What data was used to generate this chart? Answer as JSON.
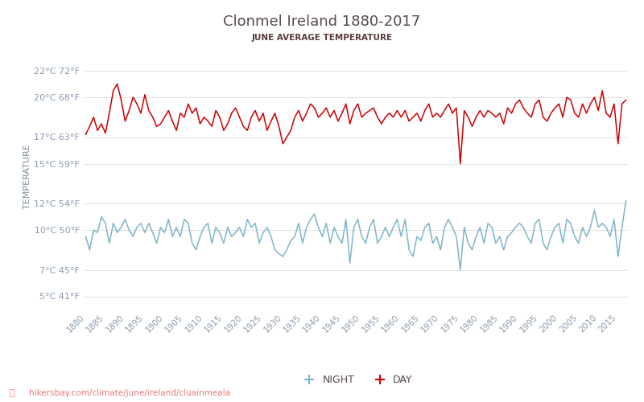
{
  "title": "Clonmel Ireland 1880-2017",
  "subtitle": "JUNE AVERAGE TEMPERATURE",
  "ylabel": "TEMPERATURE",
  "url": "hikersbay.com/climate/june/ireland/cluainmeala",
  "legend_night": "NIGHT",
  "legend_day": "DAY",
  "years": [
    1880,
    1881,
    1882,
    1883,
    1884,
    1885,
    1886,
    1887,
    1888,
    1889,
    1890,
    1891,
    1892,
    1893,
    1894,
    1895,
    1896,
    1897,
    1898,
    1899,
    1900,
    1901,
    1902,
    1903,
    1904,
    1905,
    1906,
    1907,
    1908,
    1909,
    1910,
    1911,
    1912,
    1913,
    1914,
    1915,
    1916,
    1917,
    1918,
    1919,
    1920,
    1921,
    1922,
    1923,
    1924,
    1925,
    1926,
    1927,
    1928,
    1929,
    1930,
    1931,
    1932,
    1933,
    1934,
    1935,
    1936,
    1937,
    1938,
    1939,
    1940,
    1941,
    1942,
    1943,
    1944,
    1945,
    1946,
    1947,
    1948,
    1949,
    1950,
    1951,
    1952,
    1953,
    1954,
    1955,
    1956,
    1957,
    1958,
    1959,
    1960,
    1961,
    1962,
    1963,
    1964,
    1965,
    1966,
    1967,
    1968,
    1969,
    1970,
    1971,
    1972,
    1973,
    1974,
    1975,
    1976,
    1977,
    1978,
    1979,
    1980,
    1981,
    1982,
    1983,
    1984,
    1985,
    1986,
    1987,
    1988,
    1989,
    1990,
    1991,
    1992,
    1993,
    1994,
    1995,
    1996,
    1997,
    1998,
    1999,
    2000,
    2001,
    2002,
    2003,
    2004,
    2005,
    2006,
    2007,
    2008,
    2009,
    2010,
    2011,
    2012,
    2013,
    2014,
    2015,
    2016,
    2017
  ],
  "day_temps": [
    17.2,
    17.8,
    18.5,
    17.5,
    18.0,
    17.3,
    18.8,
    20.5,
    21.0,
    19.8,
    18.2,
    19.0,
    20.0,
    19.5,
    18.8,
    20.2,
    19.0,
    18.5,
    17.8,
    18.0,
    18.5,
    19.0,
    18.2,
    17.5,
    18.8,
    18.5,
    19.5,
    18.8,
    19.2,
    18.0,
    18.5,
    18.2,
    17.8,
    19.0,
    18.5,
    17.5,
    18.0,
    18.8,
    19.2,
    18.5,
    17.8,
    17.5,
    18.5,
    19.0,
    18.2,
    18.8,
    17.5,
    18.2,
    18.8,
    17.8,
    16.5,
    17.0,
    17.5,
    18.5,
    19.0,
    18.2,
    18.8,
    19.5,
    19.2,
    18.5,
    18.8,
    19.2,
    18.5,
    19.0,
    18.2,
    18.8,
    19.5,
    18.0,
    19.0,
    19.5,
    18.5,
    18.8,
    19.0,
    19.2,
    18.5,
    18.0,
    18.5,
    18.8,
    18.5,
    19.0,
    18.5,
    19.0,
    18.2,
    18.5,
    18.8,
    18.2,
    19.0,
    19.5,
    18.5,
    18.8,
    18.5,
    19.0,
    19.5,
    18.8,
    19.2,
    15.0,
    19.0,
    18.5,
    17.8,
    18.5,
    19.0,
    18.5,
    19.0,
    18.8,
    18.5,
    18.8,
    18.0,
    19.2,
    18.8,
    19.5,
    19.8,
    19.2,
    18.8,
    18.5,
    19.5,
    19.8,
    18.5,
    18.2,
    18.8,
    19.2,
    19.5,
    18.5,
    20.0,
    19.8,
    18.8,
    18.5,
    19.5,
    18.8,
    19.5,
    20.0,
    19.0,
    20.5,
    18.8,
    18.5,
    19.5,
    16.5,
    19.5,
    19.8
  ],
  "night_temps": [
    9.5,
    8.5,
    10.0,
    9.8,
    11.0,
    10.5,
    9.0,
    10.5,
    9.8,
    10.2,
    10.8,
    10.0,
    9.5,
    10.2,
    10.5,
    9.8,
    10.5,
    9.8,
    9.0,
    10.2,
    9.8,
    10.8,
    9.5,
    10.2,
    9.5,
    10.8,
    10.5,
    9.0,
    8.5,
    9.5,
    10.2,
    10.5,
    9.0,
    10.2,
    9.8,
    9.0,
    10.2,
    9.5,
    9.8,
    10.2,
    9.5,
    10.8,
    10.2,
    10.5,
    9.0,
    9.8,
    10.2,
    9.5,
    8.5,
    8.2,
    8.0,
    8.5,
    9.2,
    9.5,
    10.5,
    9.0,
    10.2,
    10.8,
    11.2,
    10.2,
    9.5,
    10.5,
    9.0,
    10.2,
    9.5,
    9.0,
    10.8,
    7.5,
    10.2,
    10.8,
    9.5,
    9.0,
    10.2,
    10.8,
    9.0,
    9.5,
    10.2,
    9.5,
    10.2,
    10.8,
    9.5,
    10.8,
    8.5,
    8.0,
    9.5,
    9.2,
    10.2,
    10.5,
    9.0,
    9.5,
    8.5,
    10.2,
    10.8,
    10.2,
    9.5,
    7.0,
    10.2,
    9.0,
    8.5,
    9.5,
    10.2,
    9.0,
    10.5,
    10.2,
    9.0,
    9.5,
    8.5,
    9.5,
    9.8,
    10.2,
    10.5,
    10.2,
    9.5,
    9.0,
    10.5,
    10.8,
    9.0,
    8.5,
    9.5,
    10.2,
    10.5,
    9.0,
    10.8,
    10.5,
    9.5,
    9.0,
    10.2,
    9.5,
    10.2,
    11.5,
    10.2,
    10.5,
    10.2,
    9.5,
    10.8,
    8.0,
    10.2,
    12.2
  ],
  "day_color": "#cc0000",
  "night_color": "#7eb5c8",
  "background_color": "#ffffff",
  "grid_color": "#e0e0e0",
  "title_color": "#5a4a4a",
  "subtitle_color": "#5a3a3a",
  "ylabel_color": "#7a8a9a",
  "tick_color": "#8a9ab0",
  "url_color": "#e87878",
  "yticks_c": [
    5,
    7,
    10,
    12,
    15,
    17,
    20,
    22
  ],
  "yticks_f": [
    41,
    45,
    50,
    54,
    59,
    63,
    68,
    72
  ],
  "ylim": [
    4,
    24
  ],
  "line_width": 1.1
}
